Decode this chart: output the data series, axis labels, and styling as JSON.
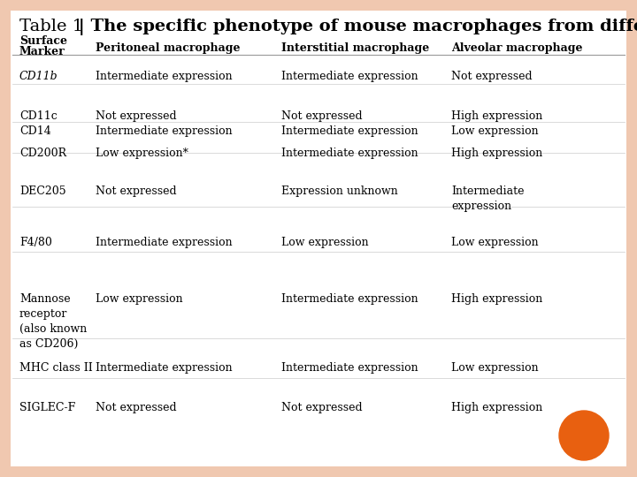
{
  "title_prefix": "Table 1",
  "title_separator": " | ",
  "title_main": "The specific phenotype of mouse macrophages from different sites",
  "header_col0": "Surface\nMarker",
  "header_col1": "Peritoneal macrophage",
  "header_col2": "Interstitial macrophage",
  "header_col3": "Alveolar macrophage",
  "rows": [
    {
      "marker": "CD11b",
      "marker_italic": true,
      "peritoneal": "Intermediate expression",
      "interstitial": "Intermediate expression",
      "alveolar": "Not expressed"
    },
    {
      "marker": "CD11c\nCD14",
      "marker_italic": false,
      "peritoneal": "Not expressed\nIntermediate expression",
      "interstitial": "Not expressed\nIntermediate expression",
      "alveolar": "High expression\nLow expression"
    },
    {
      "marker": "CD200R",
      "marker_italic": false,
      "peritoneal": "Low expression*",
      "interstitial": "Intermediate expression",
      "alveolar": "High expression"
    },
    {
      "marker": "DEC205",
      "marker_italic": false,
      "peritoneal": "Not expressed",
      "interstitial": "Expression unknown",
      "alveolar": "Intermediate\nexpression"
    },
    {
      "marker": "F4/80",
      "marker_italic": false,
      "peritoneal": "Intermediate expression",
      "interstitial": "Low expression",
      "alveolar": "Low expression"
    },
    {
      "marker": "Mannose\nreceptor\n(also known\nas CD206)",
      "marker_italic": false,
      "peritoneal": "Low expression",
      "interstitial": "Intermediate expression",
      "alveolar": "High expression"
    },
    {
      "marker": "MHC class II",
      "marker_italic": false,
      "peritoneal": "Intermediate expression",
      "interstitial": "Intermediate expression",
      "alveolar": "Low expression"
    },
    {
      "marker": "SIGLEC-F",
      "marker_italic": false,
      "peritoneal": "Not expressed",
      "interstitial": "Not expressed",
      "alveolar": "High expression"
    }
  ],
  "bg_color": "#f0c8b0",
  "table_bg": "#ffffff",
  "title_fontsize": 14,
  "header_fontsize": 9,
  "cell_fontsize": 9,
  "orange_circle_color": "#e86010"
}
